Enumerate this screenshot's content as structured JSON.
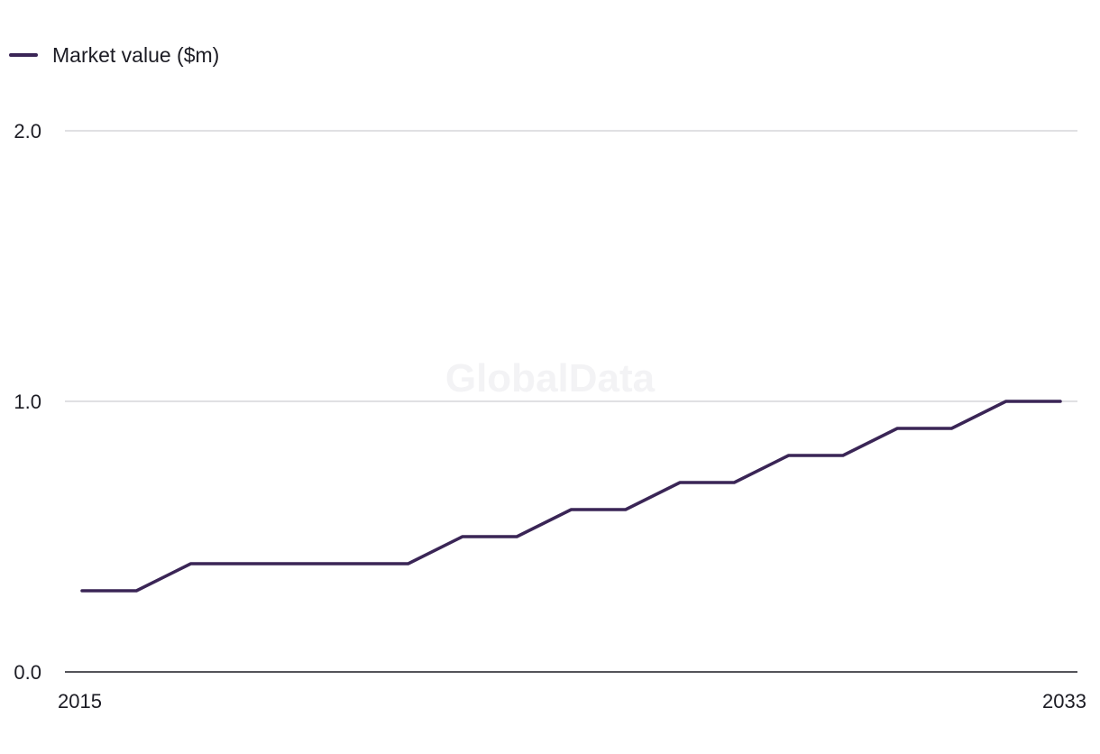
{
  "legend": {
    "label": "Market value ($m)",
    "color": "#3a2556"
  },
  "watermark": "GlobalData",
  "chart_data": {
    "type": "line",
    "x": [
      2015,
      2016,
      2017,
      2018,
      2019,
      2020,
      2021,
      2022,
      2023,
      2024,
      2025,
      2026,
      2027,
      2028,
      2029,
      2030,
      2031,
      2032,
      2033
    ],
    "series": [
      {
        "name": "Market value ($m)",
        "values": [
          0.3,
          0.3,
          0.4,
          0.4,
          0.4,
          0.4,
          0.4,
          0.5,
          0.5,
          0.6,
          0.6,
          0.7,
          0.7,
          0.8,
          0.8,
          0.9,
          0.9,
          1.0,
          1.0
        ],
        "color": "#3a2556"
      }
    ],
    "y_ticks": [
      "0.0",
      "1.0",
      "2.0"
    ],
    "x_tick_labels": [
      "2015",
      "2033"
    ],
    "ylim": [
      0,
      2
    ],
    "grid": true,
    "legend_position": "top-left"
  }
}
